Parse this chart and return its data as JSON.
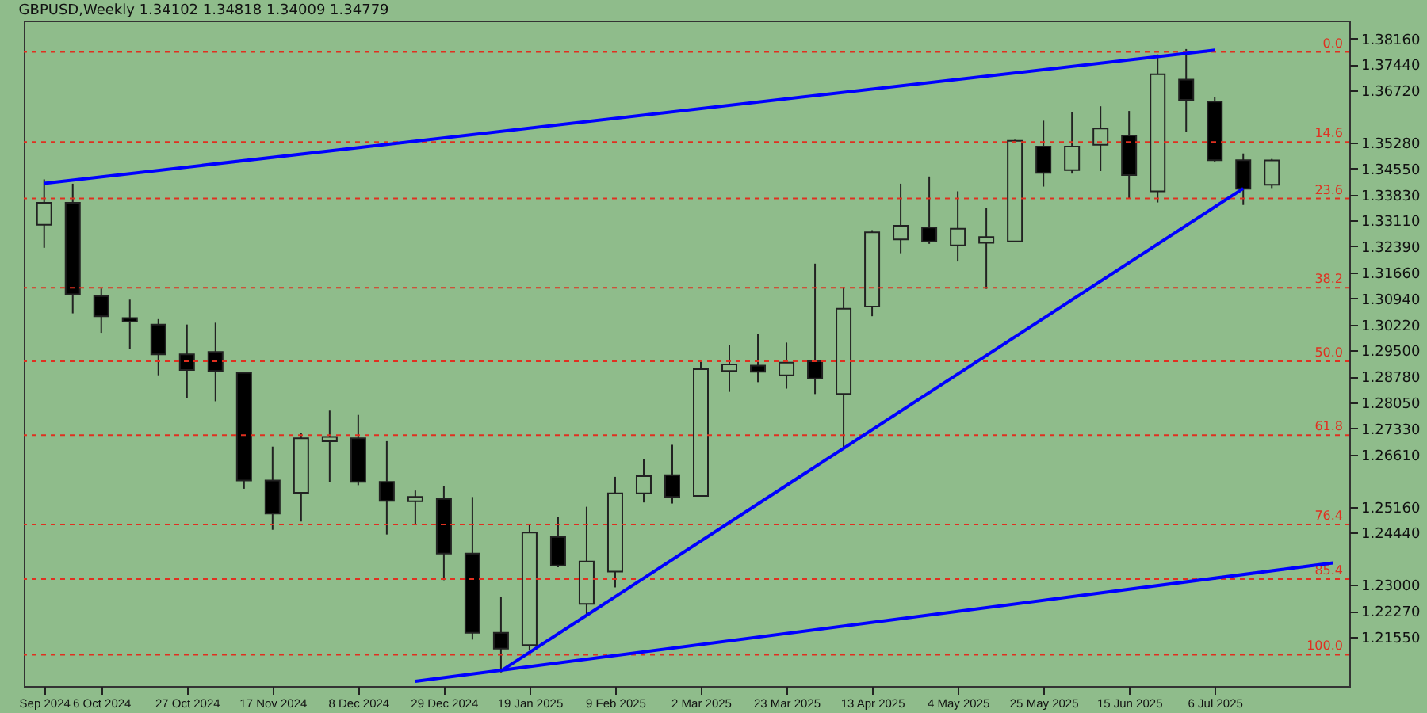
{
  "chart_data": {
    "type": "candlestick",
    "title": "GBPUSD,Weekly  1.34102 1.34818 1.34009 1.34779",
    "x": [
      "2024-09-22",
      "2024-09-29",
      "2024-10-06",
      "2024-10-13",
      "2024-10-20",
      "2024-10-27",
      "2024-11-03",
      "2024-11-10",
      "2024-11-17",
      "2024-11-24",
      "2024-12-01",
      "2024-12-08",
      "2024-12-15",
      "2024-12-22",
      "2024-12-29",
      "2025-01-05",
      "2025-01-12",
      "2025-01-19",
      "2025-01-26",
      "2025-02-02",
      "2025-02-09",
      "2025-02-16",
      "2025-02-23",
      "2025-03-02",
      "2025-03-09",
      "2025-03-16",
      "2025-03-23",
      "2025-03-30",
      "2025-04-06",
      "2025-04-13",
      "2025-04-20",
      "2025-04-27",
      "2025-05-04",
      "2025-05-11",
      "2025-05-18",
      "2025-05-25",
      "2025-06-01",
      "2025-06-08",
      "2025-06-15",
      "2025-06-22",
      "2025-06-29",
      "2025-07-06",
      "2025-07-13",
      "2025-07-20"
    ],
    "ohlc": [
      [
        1.3299,
        1.3425,
        1.3235,
        1.336
      ],
      [
        1.336,
        1.3413,
        1.3053,
        1.3106
      ],
      [
        1.3101,
        1.3122,
        1.2999,
        1.3045
      ],
      [
        1.304,
        1.3091,
        1.2954,
        1.303
      ],
      [
        1.3022,
        1.3037,
        1.2881,
        1.2939
      ],
      [
        1.2939,
        1.3022,
        1.2817,
        1.2896
      ],
      [
        1.2946,
        1.3027,
        1.2809,
        1.2893
      ],
      [
        1.2888,
        1.289,
        1.2566,
        1.2589
      ],
      [
        1.2589,
        1.2683,
        1.2452,
        1.2497
      ],
      [
        1.2555,
        1.2722,
        1.2475,
        1.2706
      ],
      [
        1.2698,
        1.2783,
        1.2584,
        1.271
      ],
      [
        1.2706,
        1.2771,
        1.2576,
        1.2585
      ],
      [
        1.2585,
        1.2698,
        1.2439,
        1.2532
      ],
      [
        1.2531,
        1.2561,
        1.2467,
        1.2543
      ],
      [
        1.2538,
        1.2574,
        1.2312,
        1.2386
      ],
      [
        1.2386,
        1.2543,
        1.2147,
        1.2166
      ],
      [
        1.2166,
        1.2266,
        1.2056,
        1.2122
      ],
      [
        1.2132,
        1.2467,
        1.2117,
        1.2444
      ],
      [
        1.2432,
        1.2488,
        1.2348,
        1.2353
      ],
      [
        1.2246,
        1.2516,
        1.2211,
        1.2364
      ],
      [
        1.2336,
        1.2599,
        1.2292,
        1.2553
      ],
      [
        1.2553,
        1.2649,
        1.2528,
        1.2601
      ],
      [
        1.2604,
        1.2688,
        1.2525,
        1.2543
      ],
      [
        1.2546,
        1.292,
        1.2546,
        1.2898
      ],
      [
        1.2893,
        1.2966,
        1.2835,
        1.2911
      ],
      [
        1.2908,
        1.2995,
        1.2862,
        1.2891
      ],
      [
        1.2881,
        1.2972,
        1.2844,
        1.2916
      ],
      [
        1.292,
        1.3191,
        1.2829,
        1.2872
      ],
      [
        1.2829,
        1.3126,
        1.268,
        1.3066
      ],
      [
        1.3072,
        1.3284,
        1.3045,
        1.3278
      ],
      [
        1.3258,
        1.3413,
        1.322,
        1.3296
      ],
      [
        1.3291,
        1.3433,
        1.3246,
        1.3253
      ],
      [
        1.3242,
        1.3392,
        1.3197,
        1.3288
      ],
      [
        1.3249,
        1.3346,
        1.3121,
        1.3265
      ],
      [
        1.3253,
        1.3535,
        1.3253,
        1.3532
      ],
      [
        1.3516,
        1.3588,
        1.3405,
        1.3443
      ],
      [
        1.3451,
        1.3611,
        1.3441,
        1.3516
      ],
      [
        1.3521,
        1.3628,
        1.3448,
        1.3566
      ],
      [
        1.3547,
        1.3615,
        1.3372,
        1.3437
      ],
      [
        1.3392,
        1.3772,
        1.3361,
        1.3717
      ],
      [
        1.3702,
        1.3787,
        1.3557,
        1.3646
      ],
      [
        1.3641,
        1.3653,
        1.3474,
        1.3478
      ],
      [
        1.3478,
        1.3497,
        1.3354,
        1.3399
      ],
      [
        1.34102,
        1.34818,
        1.34009,
        1.34779
      ]
    ],
    "series": [
      {
        "type": "line",
        "color": "#0000ff",
        "x": [
          "2024-09-22",
          "2025-07-06"
        ],
        "values": [
          1.3414,
          1.3784
        ]
      },
      {
        "type": "line",
        "color": "#0000ff",
        "x": [
          "2025-01-12",
          "2025-07-13"
        ],
        "values": [
          1.206,
          1.34
        ]
      },
      {
        "type": "line",
        "color": "#0000ff",
        "x": [
          "2024-12-22",
          "2025-08-04"
        ],
        "values": [
          1.2031,
          1.236
        ]
      }
    ],
    "xlim": [
      "2024-09-17",
      "2025-08-08"
    ],
    "xticks": [
      {
        "value": "2024-09-22",
        "label": "Sep 2024"
      },
      {
        "value": "2024-10-06",
        "label": "6 Oct 2024"
      },
      {
        "value": "2024-10-27",
        "label": "27 Oct 2024"
      },
      {
        "value": "2024-11-17",
        "label": "17 Nov 2024"
      },
      {
        "value": "2024-12-08",
        "label": "8 Dec 2024"
      },
      {
        "value": "2024-12-29",
        "label": "29 Dec 2024"
      },
      {
        "value": "2025-01-19",
        "label": "19 Jan 2025"
      },
      {
        "value": "2025-02-09",
        "label": "9 Feb 2025"
      },
      {
        "value": "2025-03-02",
        "label": "2 Mar 2025"
      },
      {
        "value": "2025-03-23",
        "label": "23 Mar 2025"
      },
      {
        "value": "2025-04-13",
        "label": "13 Apr 2025"
      },
      {
        "value": "2025-05-04",
        "label": "4 May 2025"
      },
      {
        "value": "2025-05-25",
        "label": "25 May 2025"
      },
      {
        "value": "2025-06-15",
        "label": "15 Jun 2025"
      },
      {
        "value": "2025-07-06",
        "label": "6 Jul 2025"
      }
    ],
    "ylim": [
      1.2018,
      1.3866
    ],
    "yticks": [
      {
        "value": 1.3816,
        "label": "1.38160"
      },
      {
        "value": 1.3744,
        "label": "1.37440"
      },
      {
        "value": 1.3672,
        "label": "1.36720"
      },
      {
        "value": 1.3528,
        "label": "1.35280"
      },
      {
        "value": 1.3455,
        "label": "1.34550"
      },
      {
        "value": 1.3383,
        "label": "1.33830"
      },
      {
        "value": 1.3311,
        "label": "1.33110"
      },
      {
        "value": 1.3239,
        "label": "1.32390"
      },
      {
        "value": 1.3166,
        "label": "1.31660"
      },
      {
        "value": 1.3094,
        "label": "1.30940"
      },
      {
        "value": 1.3022,
        "label": "1.30220"
      },
      {
        "value": 1.295,
        "label": "1.29500"
      },
      {
        "value": 1.2878,
        "label": "1.28780"
      },
      {
        "value": 1.2805,
        "label": "1.28050"
      },
      {
        "value": 1.2733,
        "label": "1.27330"
      },
      {
        "value": 1.2661,
        "label": "1.26610"
      },
      {
        "value": 1.2516,
        "label": "1.25160"
      },
      {
        "value": 1.2444,
        "label": "1.24440"
      },
      {
        "value": 1.23,
        "label": "1.23000"
      },
      {
        "value": 1.2227,
        "label": "1.22270"
      },
      {
        "value": 1.2155,
        "label": "1.21550"
      }
    ],
    "ref_lines": [
      {
        "axis": "y",
        "value": 1.3779,
        "color": "#e03020",
        "line_style": "dashed"
      },
      {
        "axis": "y",
        "value": 1.3529,
        "color": "#e03020",
        "line_style": "dashed"
      },
      {
        "axis": "y",
        "value": 1.3372,
        "color": "#e03020",
        "line_style": "dashed"
      },
      {
        "axis": "y",
        "value": 1.3124,
        "color": "#e03020",
        "line_style": "dashed"
      },
      {
        "axis": "y",
        "value": 1.292,
        "color": "#e03020",
        "line_style": "dashed"
      },
      {
        "axis": "y",
        "value": 1.2715,
        "color": "#e03020",
        "line_style": "dashed"
      },
      {
        "axis": "y",
        "value": 1.2467,
        "color": "#e03020",
        "line_style": "dashed"
      },
      {
        "axis": "y",
        "value": 1.2315,
        "color": "#e03020",
        "line_style": "dashed"
      },
      {
        "axis": "y",
        "value": 1.2105,
        "color": "#e03020",
        "line_style": "dashed"
      }
    ],
    "annotations": [
      {
        "text": "0.0",
        "y": 1.3779
      },
      {
        "text": "14.6",
        "y": 1.3529
      },
      {
        "text": "23.6",
        "y": 1.3372
      },
      {
        "text": "38.2",
        "y": 1.3124
      },
      {
        "text": "50.0",
        "y": 1.292
      },
      {
        "text": "61.8",
        "y": 1.2715
      },
      {
        "text": "76.4",
        "y": 1.2467
      },
      {
        "text": "85.4",
        "y": 1.2315
      },
      {
        "text": "100.0",
        "y": 1.2105
      }
    ],
    "grid": false
  }
}
